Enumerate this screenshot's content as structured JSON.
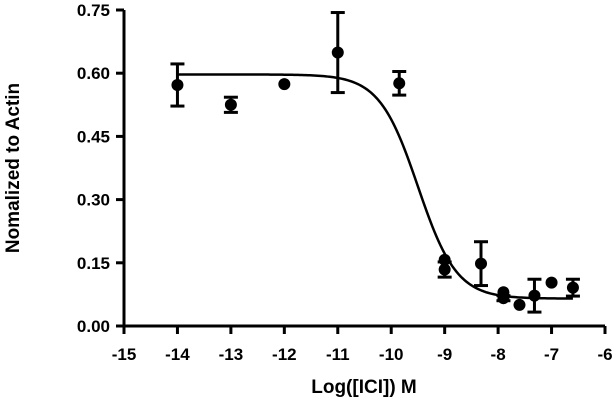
{
  "chart_data": {
    "type": "scatter",
    "xlabel": "Log([ICI]) M",
    "ylabel": "Nomalized to Actin",
    "xlim": [
      -15,
      -6
    ],
    "ylim": [
      0,
      0.75
    ],
    "x_ticks": [
      -15,
      -14,
      -13,
      -12,
      -11,
      -10,
      -9,
      -8,
      -7,
      -6
    ],
    "x_tick_labels": [
      "-15",
      "-14",
      "-13",
      "-12",
      "-11",
      "-10",
      "-9",
      "-8",
      "-7",
      "-6"
    ],
    "y_ticks": [
      0,
      0.15,
      0.3,
      0.45,
      0.6,
      0.75
    ],
    "y_tick_labels": [
      "0.00",
      "0.15",
      "0.30",
      "0.45",
      "0.60",
      "0.75"
    ],
    "grid": false,
    "legend": "none",
    "colors": {
      "marks": "#000000"
    },
    "series": [
      {
        "points": [
          {
            "x": -14,
            "y": 0.572,
            "err": 0.05
          },
          {
            "x": -13,
            "y": 0.525,
            "err": 0.018
          },
          {
            "x": -12,
            "y": 0.574,
            "err": 0
          },
          {
            "x": -11,
            "y": 0.649,
            "err": 0.095
          },
          {
            "x": -9.85,
            "y": 0.576,
            "err": 0.028
          },
          {
            "x": -9.0,
            "y": 0.134,
            "err": 0.018
          },
          {
            "x": -9.0,
            "y": 0.157,
            "err": 0
          },
          {
            "x": -8.32,
            "y": 0.148,
            "err": 0.052
          },
          {
            "x": -7.9,
            "y": 0.066,
            "err": 0.006
          },
          {
            "x": -7.9,
            "y": 0.08,
            "err": 0
          },
          {
            "x": -7.6,
            "y": 0.05,
            "err": 0
          },
          {
            "x": -7.32,
            "y": 0.072,
            "err": 0.039
          },
          {
            "x": -7.0,
            "y": 0.103,
            "err": 0
          },
          {
            "x": -6.6,
            "y": 0.091,
            "err": 0.02
          }
        ]
      }
    ],
    "fit_curve": {
      "model": "sigmoidal dose-response",
      "top": 0.597,
      "bottom": 0.065,
      "logEC50": -9.5,
      "hill_slope": -1.2,
      "x_range": [
        -14,
        -6.6
      ]
    }
  }
}
